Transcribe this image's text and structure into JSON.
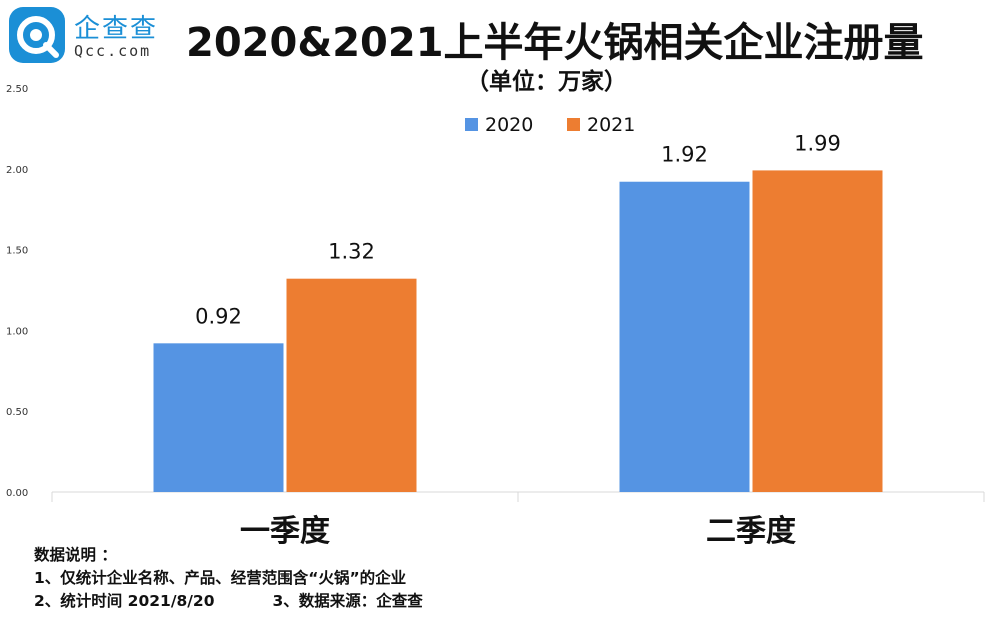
{
  "brand": {
    "name": "企查查",
    "domain": "Qcc.com"
  },
  "chart_data": {
    "type": "bar",
    "title": "2020&2021上半年火锅相关企业注册量",
    "subtitle": "（单位：万家）",
    "categories": [
      "一季度",
      "二季度"
    ],
    "series": [
      {
        "name": "2020",
        "color": "#5594e3",
        "values": [
          0.92,
          1.92
        ],
        "labels": [
          "0.92",
          "1.92"
        ]
      },
      {
        "name": "2021",
        "color": "#ed7d31",
        "values": [
          1.32,
          1.99
        ],
        "labels": [
          "1.32",
          "1.99"
        ]
      }
    ],
    "ylim": [
      0,
      2.5
    ],
    "yticks": [
      "0.00",
      "0.50",
      "1.00",
      "1.50",
      "2.00",
      "2.50"
    ],
    "legend": "top-right",
    "grid": false
  },
  "notes": {
    "heading": "数据说明 ：",
    "line1": "1、仅统计企业名称、产品、经营范围含“火锅”的企业",
    "line2a": "2、统计时间 2021/8/20",
    "line2b": "3、数据来源：企查查"
  }
}
